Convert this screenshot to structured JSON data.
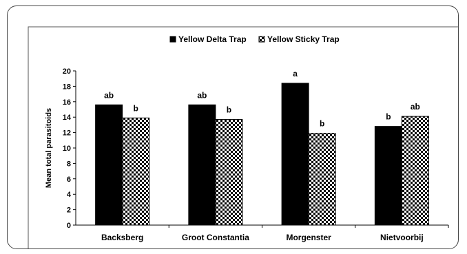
{
  "chart_data": {
    "type": "bar",
    "title": "",
    "xlabel": "",
    "ylabel": "Mean total parasitoids",
    "ylim": [
      0,
      20
    ],
    "yticks": [
      0,
      2,
      4,
      6,
      8,
      10,
      12,
      14,
      16,
      18,
      20
    ],
    "grid": false,
    "legend_position": "top",
    "categories": [
      "Backsberg",
      "Groot Constantia",
      "Morgenster",
      "Nietvoorbij"
    ],
    "series": [
      {
        "name": "Yellow Delta Trap",
        "color": "#000000",
        "pattern": "solid",
        "values": [
          15.6,
          15.6,
          18.4,
          12.8
        ],
        "annotations": [
          "ab",
          "ab",
          "a",
          "b"
        ]
      },
      {
        "name": "Yellow Sticky Trap",
        "color": "#000000",
        "pattern": "checkerboard",
        "values": [
          13.9,
          13.7,
          11.9,
          14.1
        ],
        "annotations": [
          "b",
          "b",
          "b",
          "ab"
        ]
      }
    ]
  }
}
